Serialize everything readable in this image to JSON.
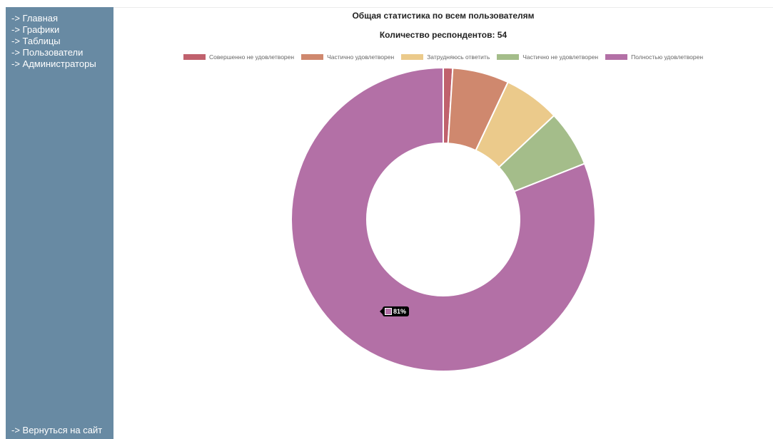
{
  "sidebar": {
    "items": [
      {
        "label": "-> Главная"
      },
      {
        "label": "-> Графики"
      },
      {
        "label": "-> Таблицы"
      },
      {
        "label": "-> Пользователи"
      },
      {
        "label": "-> Администраторы"
      }
    ],
    "back_label": "-> Вернуться на сайт"
  },
  "colors": {
    "sidebar_bg": "#688aa3",
    "slice_border": "#ffffff"
  },
  "chart_data": {
    "type": "pie",
    "variant": "doughnut",
    "title": "Общая статистика по всем пользователям",
    "subtitle": "Количество респондентов: 54",
    "legend_position": "top",
    "labels": [
      "Совершенно не удовлетворен",
      "Частично удовлетворен",
      "Затрудняюсь ответить",
      "Частично не удовлетворен",
      "Полностью удовлетворен"
    ],
    "values": [
      1,
      6,
      6,
      6,
      81
    ],
    "colors": [
      "#c0616d",
      "#cf886e",
      "#ebca8b",
      "#a4bd8a",
      "#b370a6"
    ],
    "tooltip": {
      "series_index": 4,
      "text": "81%"
    }
  }
}
